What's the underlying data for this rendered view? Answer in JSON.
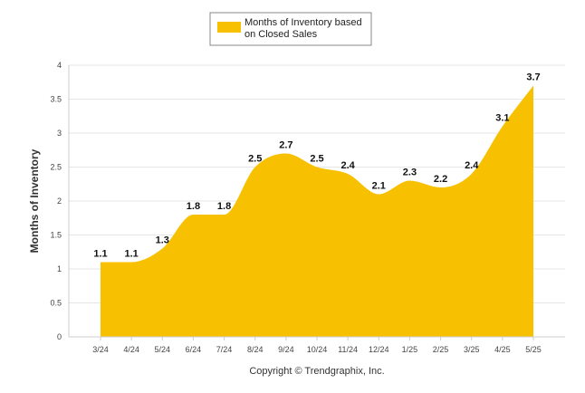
{
  "chart_data": {
    "type": "area",
    "categories": [
      "3/24",
      "4/24",
      "5/24",
      "6/24",
      "7/24",
      "8/24",
      "9/24",
      "10/24",
      "11/24",
      "12/24",
      "1/25",
      "2/25",
      "3/25",
      "4/25",
      "5/25"
    ],
    "series": [
      {
        "name": "Months of Inventory based on Closed Sales",
        "values": [
          1.1,
          1.1,
          1.3,
          1.8,
          1.8,
          2.5,
          2.7,
          2.5,
          2.4,
          2.1,
          2.3,
          2.2,
          2.4,
          3.1,
          3.7
        ],
        "color": "#f7c000"
      }
    ],
    "data_labels": [
      "1.1",
      "1.1",
      "1.3",
      "1.8",
      "1.8",
      "2.5",
      "2.7",
      "2.5",
      "2.4",
      "2.1",
      "2.3",
      "2.2",
      "2.4",
      "3.1",
      "3.7"
    ],
    "legend": {
      "line1": "Months of Inventory based",
      "line2": "on Closed Sales",
      "placement": "top-center"
    },
    "ylabel": "Months of Inventory",
    "xlabel": "",
    "ylim": [
      0,
      4
    ],
    "yticks": [
      "0",
      "0.5",
      "1",
      "1.5",
      "2",
      "2.5",
      "3",
      "3.5",
      "4"
    ],
    "grid": true,
    "footer": "Copyright © Trendgraphix, Inc."
  }
}
